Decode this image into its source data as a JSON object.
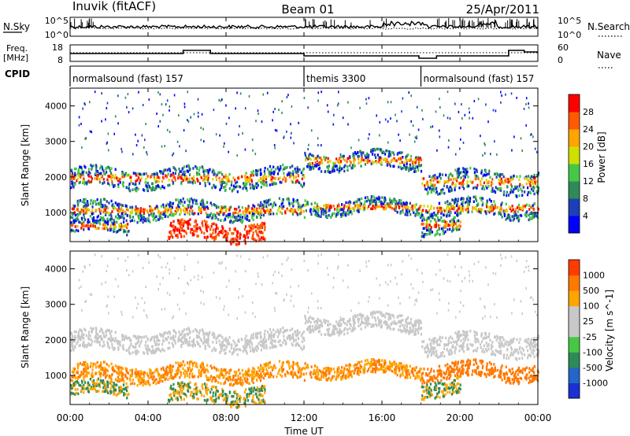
{
  "header": {
    "station": "Inuvik (fitACF)",
    "beam": "Beam 01",
    "date": "25/Apr/2011"
  },
  "top_panels": {
    "nsky_label": "N.Sky",
    "nsky_ticks": [
      "10^5",
      "10^0"
    ],
    "nsearch_label": "N.Search",
    "nsearch_ticks": [
      "10^5",
      "10^0"
    ],
    "freq_label_line1": "Freq.",
    "freq_label_line2": "[MHz]",
    "freq_ticks": [
      "18",
      "8"
    ],
    "nave_label": "Nave",
    "nave_ticks": [
      "60",
      "0"
    ],
    "cpid_label": "CPID",
    "cpid_segments": [
      {
        "name": "normalsound (fast) 157",
        "start_hour": 0,
        "end_hour": 12
      },
      {
        "name": "themis 3300",
        "start_hour": 12,
        "end_hour": 18
      },
      {
        "name": "normalsound (fast) 157",
        "start_hour": 18,
        "end_hour": 24
      }
    ]
  },
  "colors": {
    "power_scale": [
      "#0000ff",
      "#1d3fb8",
      "#2e8b57",
      "#46c846",
      "#cfe000",
      "#ffa500",
      "#ff5a00",
      "#ff0000"
    ],
    "velocity_scale": [
      "#1c2fd1",
      "#2466c8",
      "#2e8b57",
      "#46c846",
      "#c8c8c8",
      "#c8c8c8",
      "#ffa500",
      "#ff7800",
      "#ff3c00",
      "#ff0000"
    ],
    "ground_scatter": "#c0c0c0"
  },
  "chart_data": [
    {
      "type": "heatmap",
      "panel": "power",
      "ylabel": "Slant Range [km]",
      "y_ticks": [
        "1000",
        "2000",
        "3000",
        "4000"
      ],
      "ylim": [
        180,
        4500
      ],
      "xlim": [
        0,
        24
      ],
      "colorbar_label": "Power [dB]",
      "colorbar_ticks": [
        "4",
        "8",
        "12",
        "16",
        "20",
        "24",
        "28"
      ],
      "colorbar_range": [
        0,
        32
      ]
    },
    {
      "type": "heatmap",
      "panel": "velocity",
      "ylabel": "Slant Range [km]",
      "y_ticks": [
        "1000",
        "2000",
        "3000",
        "4000"
      ],
      "ylim": [
        180,
        4500
      ],
      "xlim": [
        0,
        24
      ],
      "colorbar_label": "Velocity [m s^-1]",
      "colorbar_ticks": [
        "1000",
        "500",
        "100",
        "25",
        "-25",
        "-100",
        "-500",
        "-1000"
      ]
    }
  ],
  "x_axis": {
    "ticks": [
      "00:00",
      "04:00",
      "08:00",
      "12:00",
      "16:00",
      "20:00",
      "00:00"
    ],
    "tick_hours": [
      0,
      4,
      8,
      12,
      16,
      20,
      24
    ],
    "label": "Time UT"
  }
}
